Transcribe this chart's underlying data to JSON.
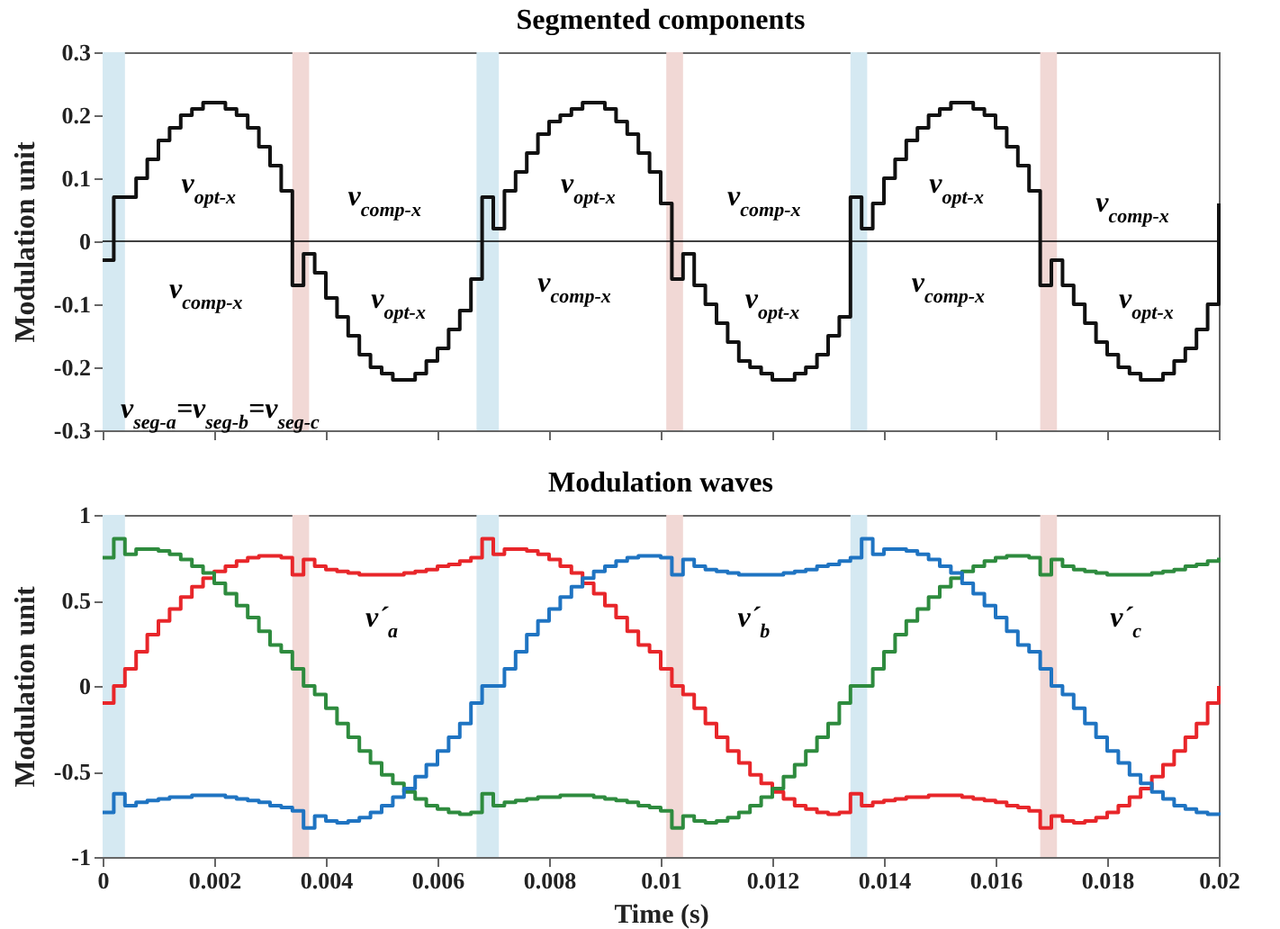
{
  "chart_data": [
    {
      "type": "step",
      "title": "Segmented components",
      "ylabel": "Modulation unit",
      "tick_labels": "y",
      "xlim": [
        0,
        0.02
      ],
      "xticks": [
        0,
        0.002,
        0.004,
        0.006,
        0.008,
        0.01,
        0.012,
        0.014,
        0.016,
        0.018,
        0.02
      ],
      "ylim": [
        -0.3,
        0.3
      ],
      "yticks": [
        -0.3,
        -0.2,
        -0.1,
        0,
        0.1,
        0.2,
        0.3
      ],
      "x": [
        0,
        0.0002,
        0.0004,
        0.0006,
        0.0008,
        0.001,
        0.0012,
        0.0014,
        0.0016,
        0.0018,
        0.002,
        0.0022,
        0.0024,
        0.0026,
        0.0028,
        0.003,
        0.0032,
        0.0034,
        0.0036,
        0.0038,
        0.004,
        0.0042,
        0.0044,
        0.0046,
        0.0048,
        0.005,
        0.0052,
        0.0054,
        0.0056,
        0.0058,
        0.006,
        0.0062,
        0.0064,
        0.0066,
        0.0068,
        0.007,
        0.0072,
        0.0074,
        0.0076,
        0.0078,
        0.008,
        0.0082,
        0.0084,
        0.0086,
        0.0088,
        0.009,
        0.0092,
        0.0094,
        0.0096,
        0.0098,
        0.01,
        0.0102,
        0.0104,
        0.0106,
        0.0108,
        0.011,
        0.0112,
        0.0114,
        0.0116,
        0.0118,
        0.012,
        0.0122,
        0.0124,
        0.0126,
        0.0128,
        0.013,
        0.0132,
        0.0134,
        0.0136,
        0.0138,
        0.014,
        0.0142,
        0.0144,
        0.0146,
        0.0148,
        0.015,
        0.0152,
        0.0154,
        0.0156,
        0.0158,
        0.016,
        0.0162,
        0.0164,
        0.0166,
        0.0168,
        0.017,
        0.0172,
        0.0174,
        0.0176,
        0.0178,
        0.018,
        0.0182,
        0.0184,
        0.0186,
        0.0188,
        0.019,
        0.0192,
        0.0194,
        0.0196,
        0.0198,
        0.02
      ],
      "series": [
        {
          "color": "#111111",
          "values": [
            -0.03,
            0.07,
            0.07,
            0.1,
            0.13,
            0.16,
            0.18,
            0.2,
            0.21,
            0.22,
            0.22,
            0.21,
            0.2,
            0.18,
            0.15,
            0.12,
            0.08,
            -0.07,
            -0.02,
            -0.05,
            -0.09,
            -0.12,
            -0.15,
            -0.18,
            -0.2,
            -0.21,
            -0.22,
            -0.22,
            -0.21,
            -0.19,
            -0.17,
            -0.14,
            -0.11,
            -0.06,
            0.07,
            0.02,
            0.08,
            0.11,
            0.14,
            0.17,
            0.19,
            0.2,
            0.21,
            0.22,
            0.22,
            0.21,
            0.19,
            0.17,
            0.14,
            0.11,
            0.06,
            -0.06,
            -0.02,
            -0.07,
            -0.1,
            -0.13,
            -0.16,
            -0.19,
            -0.2,
            -0.21,
            -0.22,
            -0.22,
            -0.21,
            -0.2,
            -0.18,
            -0.15,
            -0.12,
            0.07,
            0.02,
            0.06,
            0.1,
            0.13,
            0.16,
            0.18,
            0.2,
            0.21,
            0.22,
            0.22,
            0.21,
            0.2,
            0.18,
            0.15,
            0.12,
            0.08,
            -0.07,
            -0.03,
            -0.07,
            -0.1,
            -0.13,
            -0.16,
            -0.18,
            -0.2,
            -0.21,
            -0.22,
            -0.22,
            -0.21,
            -0.19,
            -0.17,
            -0.14,
            -0.1,
            0.06
          ]
        }
      ],
      "bands": [
        {
          "axis": "x",
          "from": 0,
          "to": 0.0004,
          "color": "#d5e9f2"
        },
        {
          "axis": "x",
          "from": 0.0034,
          "to": 0.0037,
          "color": "#f1d8d5"
        },
        {
          "axis": "x",
          "from": 0.0067,
          "to": 0.0071,
          "color": "#d5e9f2"
        },
        {
          "axis": "x",
          "from": 0.0101,
          "to": 0.0104,
          "color": "#f1d8d5"
        },
        {
          "axis": "x",
          "from": 0.0134,
          "to": 0.0137,
          "color": "#d5e9f2"
        },
        {
          "axis": "x",
          "from": 0.0168,
          "to": 0.0171,
          "color": "#f1d8d5"
        }
      ],
      "ref_lines": [
        {
          "axis": "y",
          "value": 0
        }
      ],
      "annotations": [
        {
          "text": "v$_{opt-x}$",
          "x": 0.0019,
          "y": 0.22
        },
        {
          "text": "v$_{comp-x}$",
          "x": 0.0004,
          "y": 0.01
        },
        {
          "text": "v$_{comp-x}$",
          "x": 0.0036,
          "y": -0.02
        },
        {
          "text": "v$_{opt-x}$",
          "x": 0.0053,
          "y": -0.22
        },
        {
          "text": "v$_{opt-x}$",
          "x": 0.0087,
          "y": 0.22
        },
        {
          "text": "v$_{comp-x}$",
          "x": 0.007,
          "y": 0.02
        },
        {
          "text": "v$_{comp-x}$",
          "x": 0.0104,
          "y": -0.02
        },
        {
          "text": "v$_{opt-x}$",
          "x": 0.012,
          "y": -0.22
        },
        {
          "text": "v$_{opt-x}$",
          "x": 0.0153,
          "y": 0.22
        },
        {
          "text": "v$_{comp-x}$",
          "x": 0.0137,
          "y": 0.02
        },
        {
          "text": "v$_{comp-x}$",
          "x": 0.017,
          "y": -0.03
        },
        {
          "text": "v$_{opt-x}$",
          "x": 0.0187,
          "y": -0.22
        },
        "v$_{seg-a}$=v$_{seg-b}$=v$_{seg-c}$"
      ]
    },
    {
      "type": "step",
      "title": "Modulation waves",
      "ylabel": "Modulation unit",
      "xlabel": "Time (s)",
      "xlim": [
        0,
        0.02
      ],
      "xticks": [
        0,
        0.002,
        0.004,
        0.006,
        0.008,
        0.01,
        0.012,
        0.014,
        0.016,
        0.018,
        0.02
      ],
      "ylim": [
        -1,
        1
      ],
      "yticks": [
        -1,
        -0.5,
        0,
        0.5,
        1
      ],
      "x": [
        0,
        0.0002,
        0.0004,
        0.0006,
        0.0008,
        0.001,
        0.0012,
        0.0014,
        0.0016,
        0.0018,
        0.002,
        0.0022,
        0.0024,
        0.0026,
        0.0028,
        0.003,
        0.0032,
        0.0034,
        0.0036,
        0.0038,
        0.004,
        0.0042,
        0.0044,
        0.0046,
        0.0048,
        0.005,
        0.0052,
        0.0054,
        0.0056,
        0.0058,
        0.006,
        0.0062,
        0.0064,
        0.0066,
        0.0068,
        0.007,
        0.0072,
        0.0074,
        0.0076,
        0.0078,
        0.008,
        0.0082,
        0.0084,
        0.0086,
        0.0088,
        0.009,
        0.0092,
        0.0094,
        0.0096,
        0.0098,
        0.01,
        0.0102,
        0.0104,
        0.0106,
        0.0108,
        0.011,
        0.0112,
        0.0114,
        0.0116,
        0.0118,
        0.012,
        0.0122,
        0.0124,
        0.0126,
        0.0128,
        0.013,
        0.0132,
        0.0134,
        0.0136,
        0.0138,
        0.014,
        0.0142,
        0.0144,
        0.0146,
        0.0148,
        0.015,
        0.0152,
        0.0154,
        0.0156,
        0.0158,
        0.016,
        0.0162,
        0.0164,
        0.0166,
        0.0168,
        0.017,
        0.0172,
        0.0174,
        0.0176,
        0.0178,
        0.018,
        0.0182,
        0.0184,
        0.0186,
        0.0188,
        0.019,
        0.0192,
        0.0194,
        0.0196,
        0.0198,
        0.02
      ],
      "series": [
        {
          "color": "#e8262a",
          "values": [
            -0.1,
            0,
            0.1,
            0.2,
            0.3,
            0.38,
            0.45,
            0.52,
            0.58,
            0.63,
            0.67,
            0.7,
            0.73,
            0.75,
            0.76,
            0.76,
            0.75,
            0.65,
            0.74,
            0.7,
            0.68,
            0.67,
            0.66,
            0.65,
            0.65,
            0.65,
            0.65,
            0.66,
            0.67,
            0.68,
            0.7,
            0.71,
            0.73,
            0.75,
            0.86,
            0.77,
            0.8,
            0.8,
            0.79,
            0.77,
            0.74,
            0.7,
            0.66,
            0.6,
            0.54,
            0.47,
            0.4,
            0.32,
            0.24,
            0.2,
            0.1,
            0,
            -0.05,
            -0.13,
            -0.22,
            -0.3,
            -0.38,
            -0.45,
            -0.52,
            -0.57,
            -0.62,
            -0.66,
            -0.7,
            -0.72,
            -0.74,
            -0.75,
            -0.74,
            -0.63,
            -0.7,
            -0.68,
            -0.67,
            -0.66,
            -0.65,
            -0.65,
            -0.64,
            -0.64,
            -0.64,
            -0.65,
            -0.66,
            -0.67,
            -0.68,
            -0.7,
            -0.71,
            -0.73,
            -0.83,
            -0.76,
            -0.79,
            -0.8,
            -0.79,
            -0.77,
            -0.74,
            -0.7,
            -0.65,
            -0.6,
            -0.53,
            -0.46,
            -0.38,
            -0.3,
            -0.22,
            -0.1,
            0
          ]
        },
        {
          "color": "#2e8b3e",
          "values": [
            0.75,
            0.86,
            0.77,
            0.8,
            0.8,
            0.79,
            0.77,
            0.74,
            0.7,
            0.66,
            0.6,
            0.54,
            0.47,
            0.4,
            0.32,
            0.24,
            0.2,
            0.1,
            0,
            -0.05,
            -0.13,
            -0.22,
            -0.3,
            -0.38,
            -0.45,
            -0.52,
            -0.57,
            -0.62,
            -0.66,
            -0.7,
            -0.72,
            -0.74,
            -0.75,
            -0.74,
            -0.63,
            -0.7,
            -0.68,
            -0.67,
            -0.66,
            -0.65,
            -0.65,
            -0.64,
            -0.64,
            -0.64,
            -0.65,
            -0.66,
            -0.67,
            -0.68,
            -0.7,
            -0.71,
            -0.73,
            -0.83,
            -0.76,
            -0.79,
            -0.8,
            -0.79,
            -0.77,
            -0.74,
            -0.7,
            -0.65,
            -0.6,
            -0.53,
            -0.46,
            -0.38,
            -0.3,
            -0.22,
            -0.1,
            0,
            0,
            0.1,
            0.2,
            0.3,
            0.38,
            0.45,
            0.52,
            0.58,
            0.63,
            0.67,
            0.7,
            0.73,
            0.75,
            0.76,
            0.76,
            0.75,
            0.65,
            0.74,
            0.7,
            0.68,
            0.67,
            0.66,
            0.65,
            0.65,
            0.65,
            0.65,
            0.66,
            0.67,
            0.68,
            0.7,
            0.71,
            0.73,
            0.75
          ]
        },
        {
          "color": "#1f74c2",
          "values": [
            -0.74,
            -0.63,
            -0.7,
            -0.68,
            -0.67,
            -0.66,
            -0.65,
            -0.65,
            -0.64,
            -0.64,
            -0.64,
            -0.65,
            -0.66,
            -0.67,
            -0.68,
            -0.7,
            -0.71,
            -0.73,
            -0.83,
            -0.76,
            -0.79,
            -0.8,
            -0.79,
            -0.77,
            -0.74,
            -0.7,
            -0.65,
            -0.6,
            -0.53,
            -0.46,
            -0.38,
            -0.3,
            -0.22,
            -0.1,
            0,
            0,
            0.1,
            0.2,
            0.3,
            0.38,
            0.45,
            0.52,
            0.58,
            0.63,
            0.67,
            0.7,
            0.73,
            0.75,
            0.76,
            0.76,
            0.75,
            0.65,
            0.74,
            0.7,
            0.68,
            0.67,
            0.66,
            0.65,
            0.65,
            0.65,
            0.65,
            0.66,
            0.67,
            0.68,
            0.7,
            0.71,
            0.73,
            0.75,
            0.86,
            0.77,
            0.8,
            0.8,
            0.79,
            0.77,
            0.74,
            0.7,
            0.66,
            0.6,
            0.54,
            0.47,
            0.4,
            0.32,
            0.24,
            0.2,
            0.1,
            0,
            -0.05,
            -0.13,
            -0.22,
            -0.3,
            -0.38,
            -0.45,
            -0.52,
            -0.57,
            -0.62,
            -0.66,
            -0.7,
            -0.72,
            -0.74,
            -0.75,
            -0.74
          ]
        }
      ],
      "bands": [
        {
          "axis": "x",
          "from": 0,
          "to": 0.0004,
          "color": "#d5e9f2"
        },
        {
          "axis": "x",
          "from": 0.0034,
          "to": 0.0037,
          "color": "#f1d8d5"
        },
        {
          "axis": "x",
          "from": 0.0067,
          "to": 0.0071,
          "color": "#d5e9f2"
        },
        {
          "axis": "x",
          "from": 0.0101,
          "to": 0.0104,
          "color": "#f1d8d5"
        },
        {
          "axis": "x",
          "from": 0.0134,
          "to": 0.0137,
          "color": "#d5e9f2"
        },
        {
          "axis": "x",
          "from": 0.0168,
          "to": 0.0171,
          "color": "#f1d8d5"
        }
      ],
      "annotations": [
        "v´$_{a}$",
        "v´$_{b}$",
        "v´$_{c}$"
      ]
    }
  ]
}
